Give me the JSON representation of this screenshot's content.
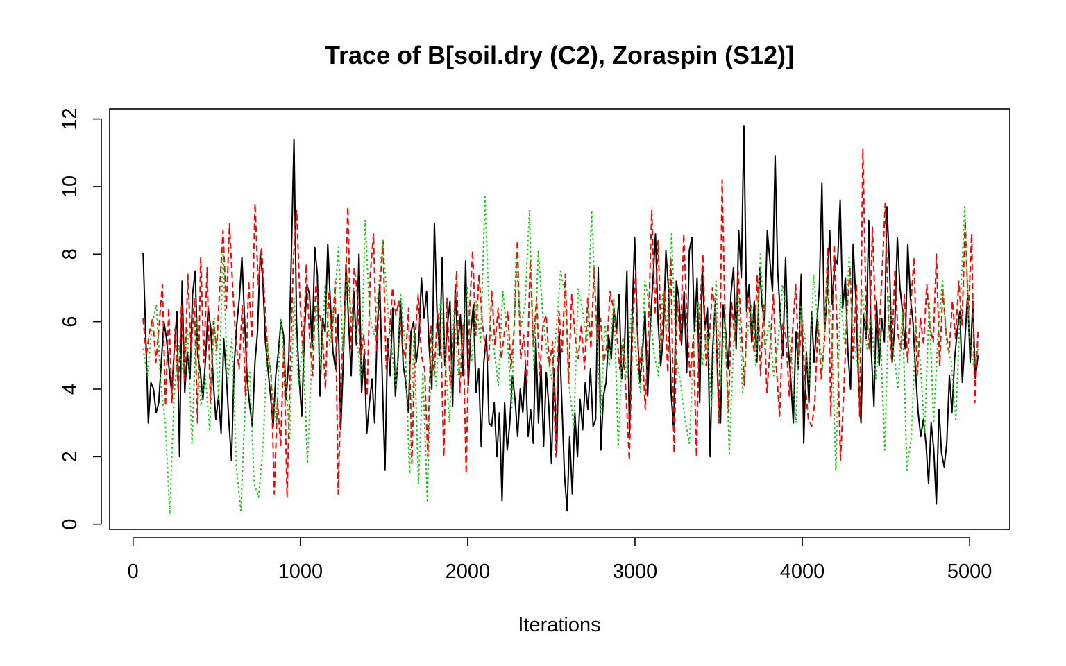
{
  "chart_data": {
    "type": "line",
    "title": "Trace of B[soil.dry (C2), Zoraspin (S12)]",
    "xlabel": "Iterations",
    "ylabel": "",
    "xlim": [
      -140,
      5240
    ],
    "ylim": [
      -0.15,
      12.3
    ],
    "xticks": [
      0,
      1000,
      2000,
      3000,
      4000,
      5000
    ],
    "xtick_labels": [
      "0",
      "1000",
      "2000",
      "3000",
      "4000",
      "5000"
    ],
    "yticks": [
      0,
      2,
      4,
      6,
      8,
      10,
      12
    ],
    "ytick_labels": [
      "0",
      "2",
      "4",
      "6",
      "8",
      "10",
      "12"
    ],
    "grid": false,
    "legend": "none",
    "x_start": 60,
    "x_end": 5050,
    "series": [
      {
        "color": "#000000",
        "dash": "solid",
        "values": [
          8.05,
          5.6,
          3.0,
          4.2,
          4.0,
          3.3,
          3.6,
          4.8,
          6.0,
          5.5,
          4.6,
          3.9,
          5.2,
          6.3,
          2.0,
          7.2,
          3.9,
          5.1,
          4.3,
          6.8,
          7.5,
          5.0,
          4.5,
          3.7,
          4.9,
          6.4,
          5.8,
          4.2,
          3.1,
          3.8,
          2.7,
          5.5,
          4.4,
          3.0,
          1.9,
          4.7,
          5.9,
          6.7,
          7.9,
          6.1,
          4.3,
          3.5,
          2.9,
          4.8,
          5.7,
          8.0,
          7.3,
          5.4,
          4.6,
          3.8,
          2.9,
          4.4,
          5.1,
          6.0,
          5.6,
          3.7,
          4.9,
          7.9,
          11.4,
          6.0,
          4.3,
          3.2,
          5.6,
          7.1,
          6.8,
          5.2,
          8.2,
          7.4,
          3.8,
          6.1,
          5.7,
          8.3,
          6.6,
          5.1,
          4.6,
          6.2,
          2.8,
          4.9,
          7.7,
          6.0,
          4.4,
          6.9,
          5.3,
          8.0,
          3.9,
          5.1,
          2.7,
          3.6,
          4.3,
          3.0,
          5.8,
          7.1,
          4.2,
          1.6,
          5.5,
          4.4,
          6.4,
          3.8,
          4.9,
          6.6,
          4.7,
          4.2,
          3.3,
          5.7,
          6.0,
          4.8,
          5.4,
          7.3,
          6.1,
          6.9,
          5.2,
          4.0,
          8.9,
          6.3,
          5.0,
          7.9,
          4.7,
          5.9,
          6.6,
          3.5,
          7.0,
          5.3,
          6.2,
          4.4,
          7.8,
          4.1,
          5.7,
          6.5,
          3.9,
          4.6,
          2.3,
          4.8,
          5.6,
          3.0,
          2.9,
          3.6,
          2.0,
          3.3,
          0.7,
          3.6,
          2.2,
          3.0,
          4.4,
          3.7,
          2.6,
          4.0,
          3.3,
          4.7,
          2.6,
          3.4,
          2.4,
          5.5,
          3.0,
          4.7,
          2.3,
          4.5,
          3.5,
          1.8,
          4.6,
          2.1,
          5.7,
          3.6,
          1.5,
          0.4,
          2.6,
          0.9,
          3.3,
          2.0,
          3.7,
          2.8,
          4.2,
          3.4,
          4.6,
          2.9,
          3.1,
          7.6,
          2.2,
          3.8,
          4.2,
          5.6,
          4.9,
          6.4,
          5.7,
          6.8,
          4.3,
          5.0,
          7.5,
          2.7,
          6.1,
          8.5,
          5.8,
          4.2,
          5.1,
          6.3,
          3.8,
          5.9,
          7.2,
          8.6,
          6.0,
          4.7,
          5.5,
          8.1,
          7.0,
          3.9,
          2.8,
          7.2,
          6.7,
          5.3,
          6.9,
          4.5,
          8.1,
          8.5,
          5.7,
          7.3,
          3.6,
          7.6,
          5.8,
          6.4,
          2.0,
          5.2,
          6.6,
          4.1,
          3.0,
          6.5,
          5.7,
          4.6,
          6.8,
          7.6,
          5.2,
          8.7,
          7.3,
          11.8,
          6.3,
          7.1,
          5.4,
          6.6,
          4.8,
          7.6,
          6.5,
          5.9,
          8.7,
          7.8,
          6.9,
          10.9,
          7.5,
          6.2,
          5.0,
          7.9,
          5.3,
          4.3,
          3.0,
          5.7,
          4.6,
          7.4,
          2.4,
          5.1,
          3.6,
          6.3,
          4.8,
          5.9,
          7.0,
          10.1,
          5.7,
          6.8,
          8.7,
          6.5,
          7.9,
          7.7,
          9.6,
          6.4,
          7.3,
          5.1,
          4.0,
          8.3,
          6.7,
          4.4,
          3.0,
          6.2,
          5.5,
          9.0,
          5.1,
          3.5,
          6.6,
          4.7,
          6.1,
          5.4,
          9.4,
          7.6,
          4.8,
          5.9,
          8.5,
          7.0,
          6.3,
          5.2,
          8.3,
          6.7,
          6.0,
          4.5,
          3.3,
          2.6,
          3.1,
          2.4,
          1.2,
          3.0,
          2.2,
          0.6,
          3.4,
          2.1,
          1.7,
          2.4,
          4.4,
          3.3,
          4.9,
          5.7,
          6.3,
          4.2,
          5.5,
          6.8,
          4.8,
          6.6,
          4.3,
          5.0
        ]
      },
      {
        "color": "#ff0000",
        "dash": "dashed",
        "values": [
          6.1,
          5.0,
          5.7,
          6.1,
          4.8,
          5.9,
          7.1,
          3.5,
          6.4,
          3.6,
          5.8,
          3.9,
          6.5,
          4.2,
          7.4,
          5.1,
          6.7,
          3.0,
          7.9,
          4.8,
          7.6,
          3.6,
          6.0,
          5.2,
          7.1,
          8.7,
          6.4,
          8.9,
          7.0,
          5.4,
          4.6,
          6.5,
          3.8,
          7.2,
          5.5,
          9.5,
          7.1,
          8.2,
          6.6,
          5.0,
          4.5,
          0.9,
          3.7,
          2.3,
          5.3,
          0.8,
          4.6,
          7.9,
          9.3,
          6.7,
          5.0,
          7.7,
          5.6,
          4.4,
          7.1,
          6.3,
          5.8,
          4.0,
          6.9,
          5.4,
          7.2,
          0.9,
          4.7,
          6.1,
          9.4,
          5.2,
          7.6,
          6.8,
          4.9,
          5.6,
          3.8,
          7.4,
          8.6,
          5.1,
          6.9,
          8.4,
          4.6,
          5.7,
          7.0,
          6.2,
          6.6,
          5.3,
          4.9,
          6.4,
          1.8,
          5.5,
          6.8,
          5.0,
          4.6,
          2.0,
          5.9,
          4.4,
          6.3,
          5.7,
          2.0,
          6.7,
          4.1,
          5.4,
          7.5,
          3.9,
          5.9,
          1.5,
          6.2,
          8.1,
          5.6,
          7.4,
          6.0,
          5.2,
          4.8,
          6.9,
          5.3,
          6.4,
          4.9,
          5.7,
          6.3,
          4.6,
          5.8,
          8.4,
          4.9,
          5.6,
          4.2,
          7.8,
          5.3,
          6.7,
          4.4,
          5.9,
          6.2,
          4.7,
          5.4,
          2.0,
          6.3,
          5.1,
          7.4,
          4.2,
          6.8,
          5.6,
          4.9,
          5.9,
          4.6,
          6.7,
          5.2,
          7.6,
          5.4,
          6.1,
          4.8,
          5.3,
          6.9,
          6.4,
          5.7,
          4.6,
          5.5,
          3.8,
          1.9,
          5.7,
          7.5,
          4.6,
          5.3,
          3.4,
          6.0,
          9.3,
          6.2,
          8.4,
          5.2,
          6.9,
          4.5,
          7.9,
          2.1,
          6.6,
          5.4,
          8.6,
          6.1,
          4.3,
          5.6,
          2.0,
          6.3,
          8.0,
          4.7,
          5.5,
          7.0,
          6.2,
          3.0,
          10.2,
          5.6,
          3.3,
          6.6,
          5.4,
          7.5,
          5.8,
          4.1,
          6.7,
          6.0,
          5.1,
          7.4,
          4.4,
          6.5,
          3.9,
          5.2,
          6.8,
          4.6,
          3.2,
          6.0,
          5.5,
          3.8,
          5.7,
          7.1,
          4.9,
          6.0,
          4.1,
          3.1,
          2.9,
          3.6,
          6.0,
          4.3,
          5.4,
          8.2,
          3.2,
          8.3,
          5.7,
          1.9,
          3.8,
          6.2,
          7.6,
          4.9,
          7.1,
          3.2,
          11.1,
          6.4,
          5.2,
          8.8,
          6.0,
          5.5,
          7.4,
          9.5,
          6.1,
          4.9,
          7.5,
          5.6,
          5.2,
          6.8,
          4.8,
          6.5,
          7.9,
          4.4,
          6.1,
          5.3,
          7.1,
          5.8,
          5.4,
          8.0,
          4.7,
          6.9,
          5.7,
          5.1,
          6.6,
          5.5,
          7.2,
          5.9,
          9.0,
          6.2,
          8.6,
          3.6,
          5.7
        ]
      },
      {
        "color": "#00cd00",
        "dash": "dotted",
        "values": [
          5.2,
          4.4,
          5.9,
          6.5,
          4.1,
          3.0,
          0.3,
          3.9,
          5.3,
          4.5,
          5.8,
          2.4,
          6.1,
          3.5,
          4.4,
          2.8,
          6.1,
          3.7,
          8.1,
          4.2,
          5.5,
          1.7,
          0.4,
          3.6,
          4.5,
          1.2,
          0.8,
          2.3,
          5.4,
          4.0,
          3.0,
          6.1,
          4.5,
          2.5,
          6.7,
          4.1,
          5.4,
          1.8,
          5.0,
          6.5,
          4.6,
          7.1,
          5.3,
          6.4,
          8.2,
          5.1,
          7.4,
          6.0,
          5.7,
          4.3,
          9.0,
          6.2,
          5.6,
          7.0,
          8.4,
          6.5,
          5.2,
          4.0,
          6.8,
          5.3,
          1.5,
          5.7,
          1.2,
          4.5,
          0.7,
          5.8,
          4.1,
          6.7,
          5.0,
          3.0,
          6.3,
          4.4,
          5.7,
          7.0,
          4.8,
          6.6,
          5.4,
          9.7,
          6.0,
          5.2,
          4.1,
          6.9,
          5.6,
          3.4,
          8.0,
          5.8,
          6.5,
          9.3,
          4.6,
          8.1,
          6.2,
          5.0,
          4.3,
          5.7,
          7.5,
          6.8,
          4.0,
          2.9,
          7.0,
          6.3,
          5.4,
          9.3,
          6.1,
          3.2,
          5.9,
          4.7,
          6.7,
          2.3,
          5.5,
          4.3,
          6.4,
          5.0,
          3.9,
          7.2,
          6.5,
          5.1,
          4.4,
          6.8,
          5.9,
          8.6,
          5.0,
          4.2,
          3.1,
          2.4,
          5.3,
          6.6,
          4.7,
          5.8,
          3.5,
          7.2,
          4.1,
          6.1,
          2.1,
          5.5,
          6.8,
          3.9,
          5.6,
          6.5,
          4.7,
          8.0,
          5.2,
          6.0,
          4.4,
          5.4,
          7.1,
          6.2,
          5.0,
          3.0,
          6.5,
          5.6,
          4.1,
          7.4,
          5.8,
          4.6,
          7.3,
          5.9,
          1.6,
          6.8,
          5.3,
          7.9,
          5.5,
          4.6,
          6.9,
          5.2,
          6.1,
          4.3,
          5.7,
          2.2,
          6.8,
          5.1,
          4.0,
          6.3,
          1.6,
          2.6,
          5.9,
          4.8,
          2.7,
          6.6,
          3.0,
          5.6,
          7.2,
          5.3,
          4.8,
          3.1,
          6.4,
          9.4,
          5.6,
          4.7,
          5.2
        ]
      }
    ]
  }
}
